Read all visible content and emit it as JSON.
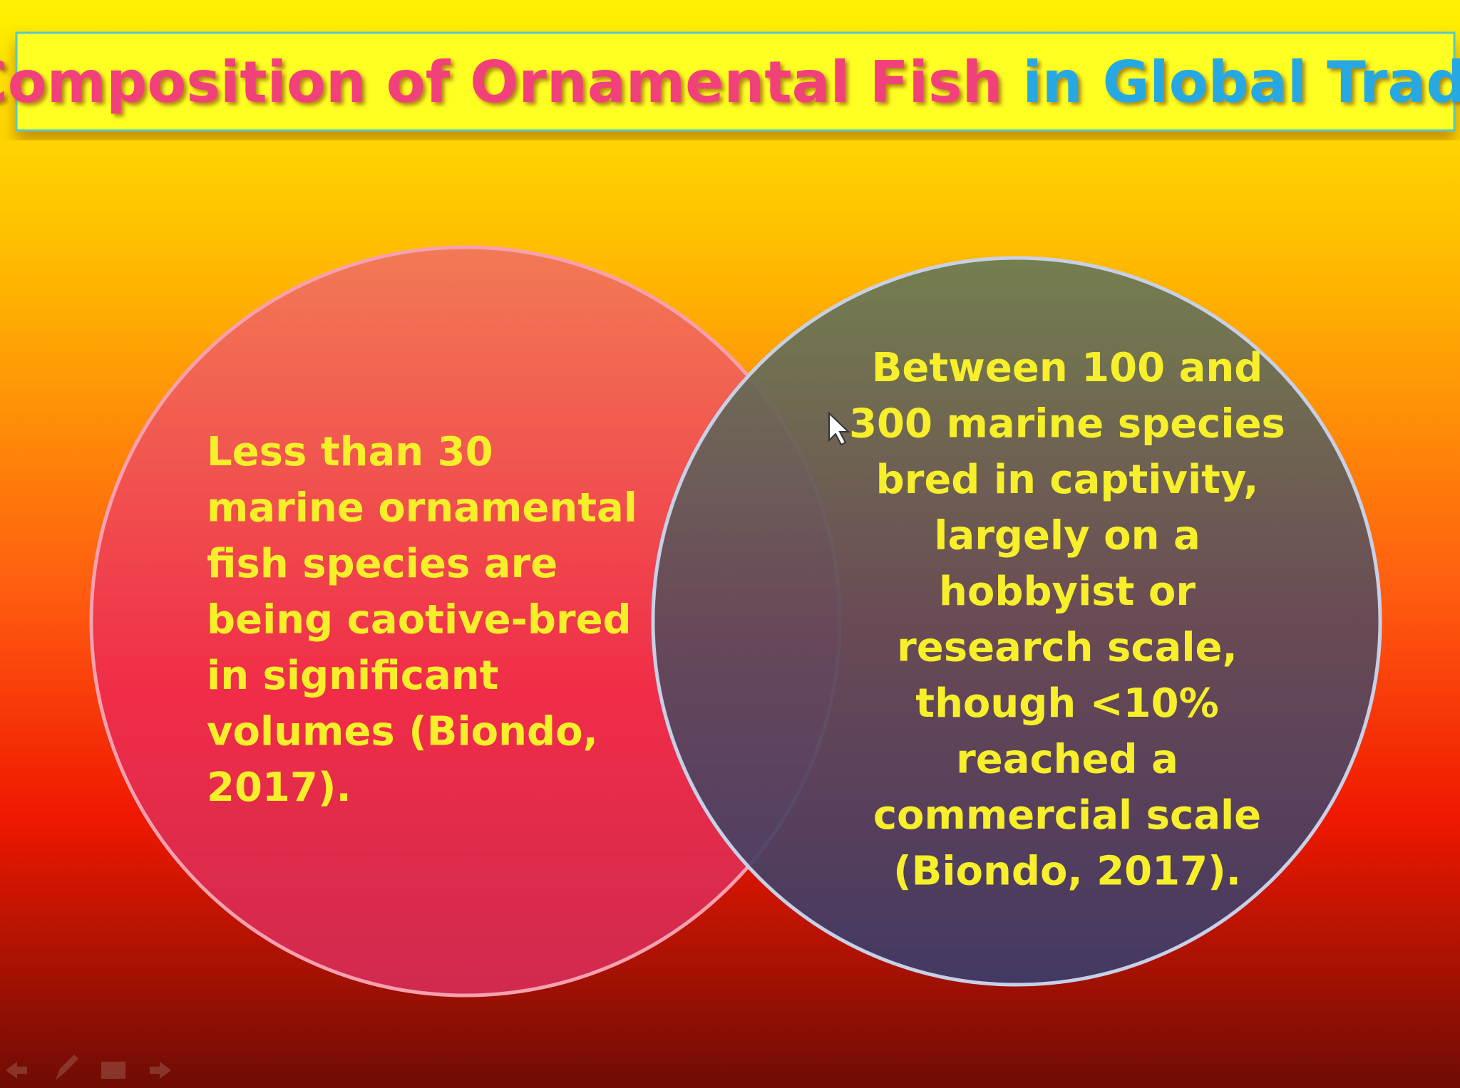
{
  "title": {
    "part1": "Composition of Ornamental Fish",
    "part2": "in Global Trade"
  },
  "left_circle": {
    "lines": [
      "Less than 30",
      "marine ornamental",
      "fish species are",
      "being caotive-bred",
      "in significant",
      "volumes (Biondo,",
      "2017)."
    ]
  },
  "right_circle": {
    "lines": [
      "Between 100 and",
      "300 marine species",
      "bred in captivity,",
      "largely on a",
      "hobbyist or",
      "research scale,",
      "though <10%",
      "reached a",
      "commercial scale",
      "(Biondo, 2017)."
    ]
  }
}
